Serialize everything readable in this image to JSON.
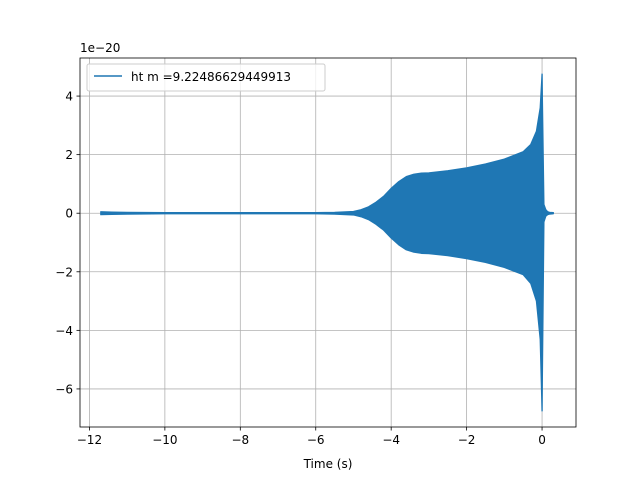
{
  "chart_data": {
    "type": "line",
    "title": "",
    "xlabel": "Time (s)",
    "ylabel": "",
    "y_offset_label": "1e−20",
    "xlim": [
      -12.25,
      0.9
    ],
    "ylim": [
      -7.3,
      5.3
    ],
    "grid": true,
    "legend_position": "upper-left",
    "x_ticks": [
      -12,
      -10,
      -8,
      -6,
      -4,
      -2,
      0
    ],
    "x_tick_labels": [
      "−12",
      "−10",
      "−8",
      "−6",
      "−4",
      "−2",
      "0"
    ],
    "y_ticks": [
      -6,
      -4,
      -2,
      0,
      2,
      4
    ],
    "y_tick_labels": [
      "−6",
      "−4",
      "−2",
      "0",
      "2",
      "4"
    ],
    "series": [
      {
        "name": "ht m =9.22486629449913",
        "color": "#1f77b4",
        "envelope": {
          "x": [
            -11.7,
            -11.4,
            -11.0,
            -10.0,
            -8.0,
            -6.0,
            -5.5,
            -5.0,
            -4.8,
            -4.6,
            -4.4,
            -4.2,
            -4.0,
            -3.8,
            -3.6,
            -3.4,
            -3.2,
            -3.0,
            -2.5,
            -2.0,
            -1.5,
            -1.0,
            -0.5,
            -0.3,
            -0.15,
            -0.05,
            0.0
          ],
          "upper": [
            0.05,
            0.04,
            0.03,
            0.02,
            0.02,
            0.02,
            0.03,
            0.06,
            0.12,
            0.22,
            0.38,
            0.58,
            0.85,
            1.08,
            1.25,
            1.33,
            1.37,
            1.38,
            1.45,
            1.55,
            1.68,
            1.85,
            2.1,
            2.35,
            2.8,
            3.6,
            4.75
          ],
          "lower": [
            -0.05,
            -0.04,
            -0.03,
            -0.02,
            -0.02,
            -0.02,
            -0.03,
            -0.06,
            -0.12,
            -0.22,
            -0.38,
            -0.58,
            -0.85,
            -1.08,
            -1.25,
            -1.33,
            -1.37,
            -1.38,
            -1.45,
            -1.55,
            -1.68,
            -1.85,
            -2.1,
            -2.4,
            -3.0,
            -4.3,
            -6.75
          ]
        },
        "ringdown": {
          "x": [
            0.0,
            0.05,
            0.1,
            0.15,
            0.2,
            0.3
          ],
          "upper": [
            4.75,
            0.3,
            0.12,
            0.05,
            0.03,
            0.02
          ],
          "lower": [
            -6.75,
            -0.3,
            -0.1,
            -0.05,
            -0.03,
            -0.02
          ]
        }
      }
    ]
  }
}
